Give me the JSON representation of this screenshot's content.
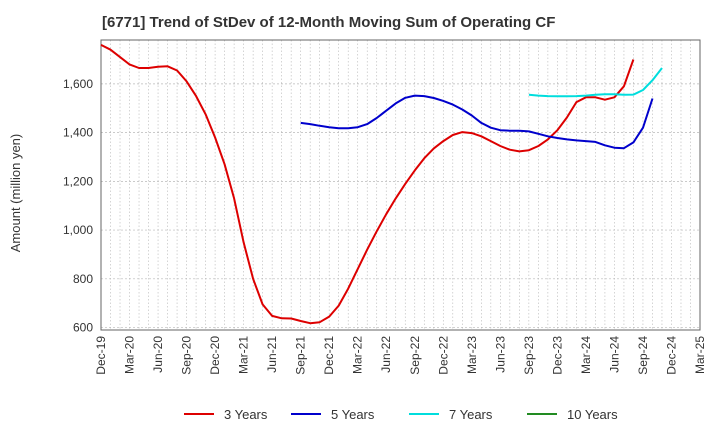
{
  "chart_data": {
    "type": "line",
    "title": "[6771]  Trend of StDev of 12-Month Moving Sum of Operating CF",
    "xlabel": "",
    "ylabel": "Amount (million yen)",
    "ylim": [
      590,
      1780
    ],
    "yticks": [
      600,
      800,
      1000,
      1200,
      1400,
      1600
    ],
    "ytick_labels": [
      "600",
      "800",
      "1,000",
      "1,200",
      "1,400",
      "1,600"
    ],
    "x_labels": [
      "Dec-19",
      "Mar-20",
      "Jun-20",
      "Sep-20",
      "Dec-20",
      "Mar-21",
      "Jun-21",
      "Sep-21",
      "Dec-21",
      "Mar-22",
      "Jun-22",
      "Sep-22",
      "Dec-22",
      "Mar-23",
      "Jun-23",
      "Sep-23",
      "Dec-23",
      "Mar-24",
      "Jun-24",
      "Sep-24",
      "Dec-24",
      "Mar-25"
    ],
    "x_start": "2019-12",
    "x_end": "2025-03",
    "grid": true,
    "legend_position": "bottom",
    "series": [
      {
        "name": "3 Years",
        "color": "#dd0000",
        "start": "2019-12",
        "values": [
          1760,
          1740,
          1710,
          1680,
          1665,
          1665,
          1670,
          1672,
          1655,
          1610,
          1550,
          1475,
          1380,
          1270,
          1130,
          950,
          800,
          695,
          648,
          638,
          637,
          627,
          618,
          622,
          645,
          690,
          760,
          840,
          920,
          995,
          1065,
          1130,
          1190,
          1245,
          1295,
          1335,
          1365,
          1390,
          1402,
          1398,
          1385,
          1365,
          1345,
          1330,
          1323,
          1328,
          1345,
          1372,
          1410,
          1462,
          1525,
          1545,
          1545,
          1535,
          1545,
          1590,
          1700
        ]
      },
      {
        "name": "5 Years",
        "color": "#0000cc",
        "start": "2021-09",
        "values": [
          1440,
          1435,
          1428,
          1422,
          1418,
          1418,
          1422,
          1435,
          1460,
          1490,
          1520,
          1543,
          1552,
          1550,
          1542,
          1530,
          1515,
          1495,
          1470,
          1440,
          1420,
          1410,
          1408,
          1408,
          1405,
          1395,
          1385,
          1378,
          1372,
          1368,
          1365,
          1362,
          1348,
          1338,
          1336,
          1360,
          1420,
          1540
        ]
      },
      {
        "name": "7 Years",
        "color": "#00dddd",
        "start": "2023-09",
        "values": [
          1555,
          1552,
          1550,
          1549,
          1549,
          1550,
          1552,
          1555,
          1557,
          1557,
          1555,
          1556,
          1575,
          1615,
          1665
        ]
      },
      {
        "name": "10 Years",
        "color": "#228b22",
        "start": "2024-09",
        "values": []
      }
    ]
  }
}
